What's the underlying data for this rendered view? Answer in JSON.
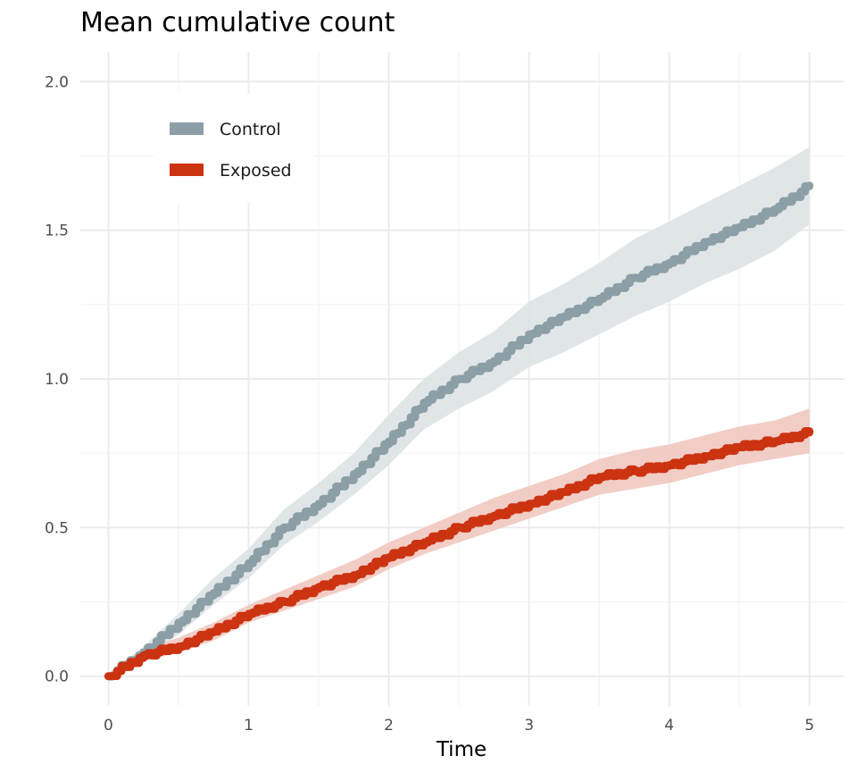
{
  "chart_data": {
    "type": "line",
    "title": "Mean cumulative count",
    "xlabel": "Time",
    "ylabel": "",
    "xlim": [
      -0.2,
      5.25
    ],
    "ylim": [
      -0.1,
      2.1
    ],
    "x_ticks": [
      0,
      1,
      2,
      3,
      4,
      5
    ],
    "x_tick_labels": [
      "0",
      "1",
      "2",
      "3",
      "4",
      "5"
    ],
    "y_ticks": [
      0.0,
      0.5,
      1.0,
      1.5,
      2.0
    ],
    "y_tick_labels": [
      "0.0",
      "0.5",
      "1.0",
      "1.5",
      "2.0"
    ],
    "grid": true,
    "legend_position": "top-left",
    "series": [
      {
        "name": "Control",
        "color": "#8c9fa6",
        "band_color": "#dde3e5",
        "x": [
          0,
          0.25,
          0.5,
          0.75,
          1.0,
          1.25,
          1.5,
          1.75,
          2.0,
          2.25,
          2.5,
          2.75,
          3.0,
          3.25,
          3.5,
          3.75,
          4.0,
          4.25,
          4.5,
          4.75,
          5.0
        ],
        "values": [
          0.0,
          0.08,
          0.18,
          0.28,
          0.38,
          0.5,
          0.58,
          0.68,
          0.79,
          0.92,
          1.0,
          1.06,
          1.15,
          1.21,
          1.27,
          1.34,
          1.39,
          1.46,
          1.51,
          1.57,
          1.65
        ],
        "lower": [
          0.0,
          0.06,
          0.14,
          0.24,
          0.33,
          0.44,
          0.52,
          0.61,
          0.71,
          0.83,
          0.9,
          0.96,
          1.04,
          1.09,
          1.15,
          1.21,
          1.26,
          1.32,
          1.37,
          1.43,
          1.52
        ],
        "upper": [
          0.01,
          0.1,
          0.21,
          0.33,
          0.43,
          0.56,
          0.65,
          0.75,
          0.88,
          1.0,
          1.09,
          1.16,
          1.26,
          1.32,
          1.39,
          1.47,
          1.53,
          1.59,
          1.65,
          1.71,
          1.78
        ]
      },
      {
        "name": "Exposed",
        "color": "#cc3311",
        "band_color": "#f0c8c0",
        "x": [
          0,
          0.25,
          0.5,
          0.75,
          1.0,
          1.25,
          1.5,
          1.75,
          2.0,
          2.25,
          2.5,
          2.75,
          3.0,
          3.25,
          3.5,
          3.75,
          4.0,
          4.25,
          4.5,
          4.75,
          5.0
        ],
        "values": [
          0.0,
          0.07,
          0.1,
          0.15,
          0.21,
          0.25,
          0.3,
          0.34,
          0.4,
          0.45,
          0.5,
          0.54,
          0.58,
          0.62,
          0.67,
          0.69,
          0.71,
          0.74,
          0.77,
          0.79,
          0.82
        ],
        "lower": [
          0.0,
          0.05,
          0.08,
          0.12,
          0.18,
          0.22,
          0.26,
          0.3,
          0.36,
          0.41,
          0.45,
          0.49,
          0.53,
          0.57,
          0.61,
          0.63,
          0.65,
          0.68,
          0.71,
          0.73,
          0.75
        ],
        "upper": [
          0.01,
          0.09,
          0.13,
          0.18,
          0.24,
          0.29,
          0.34,
          0.39,
          0.45,
          0.5,
          0.55,
          0.6,
          0.64,
          0.68,
          0.73,
          0.76,
          0.78,
          0.81,
          0.84,
          0.86,
          0.9
        ]
      }
    ]
  }
}
